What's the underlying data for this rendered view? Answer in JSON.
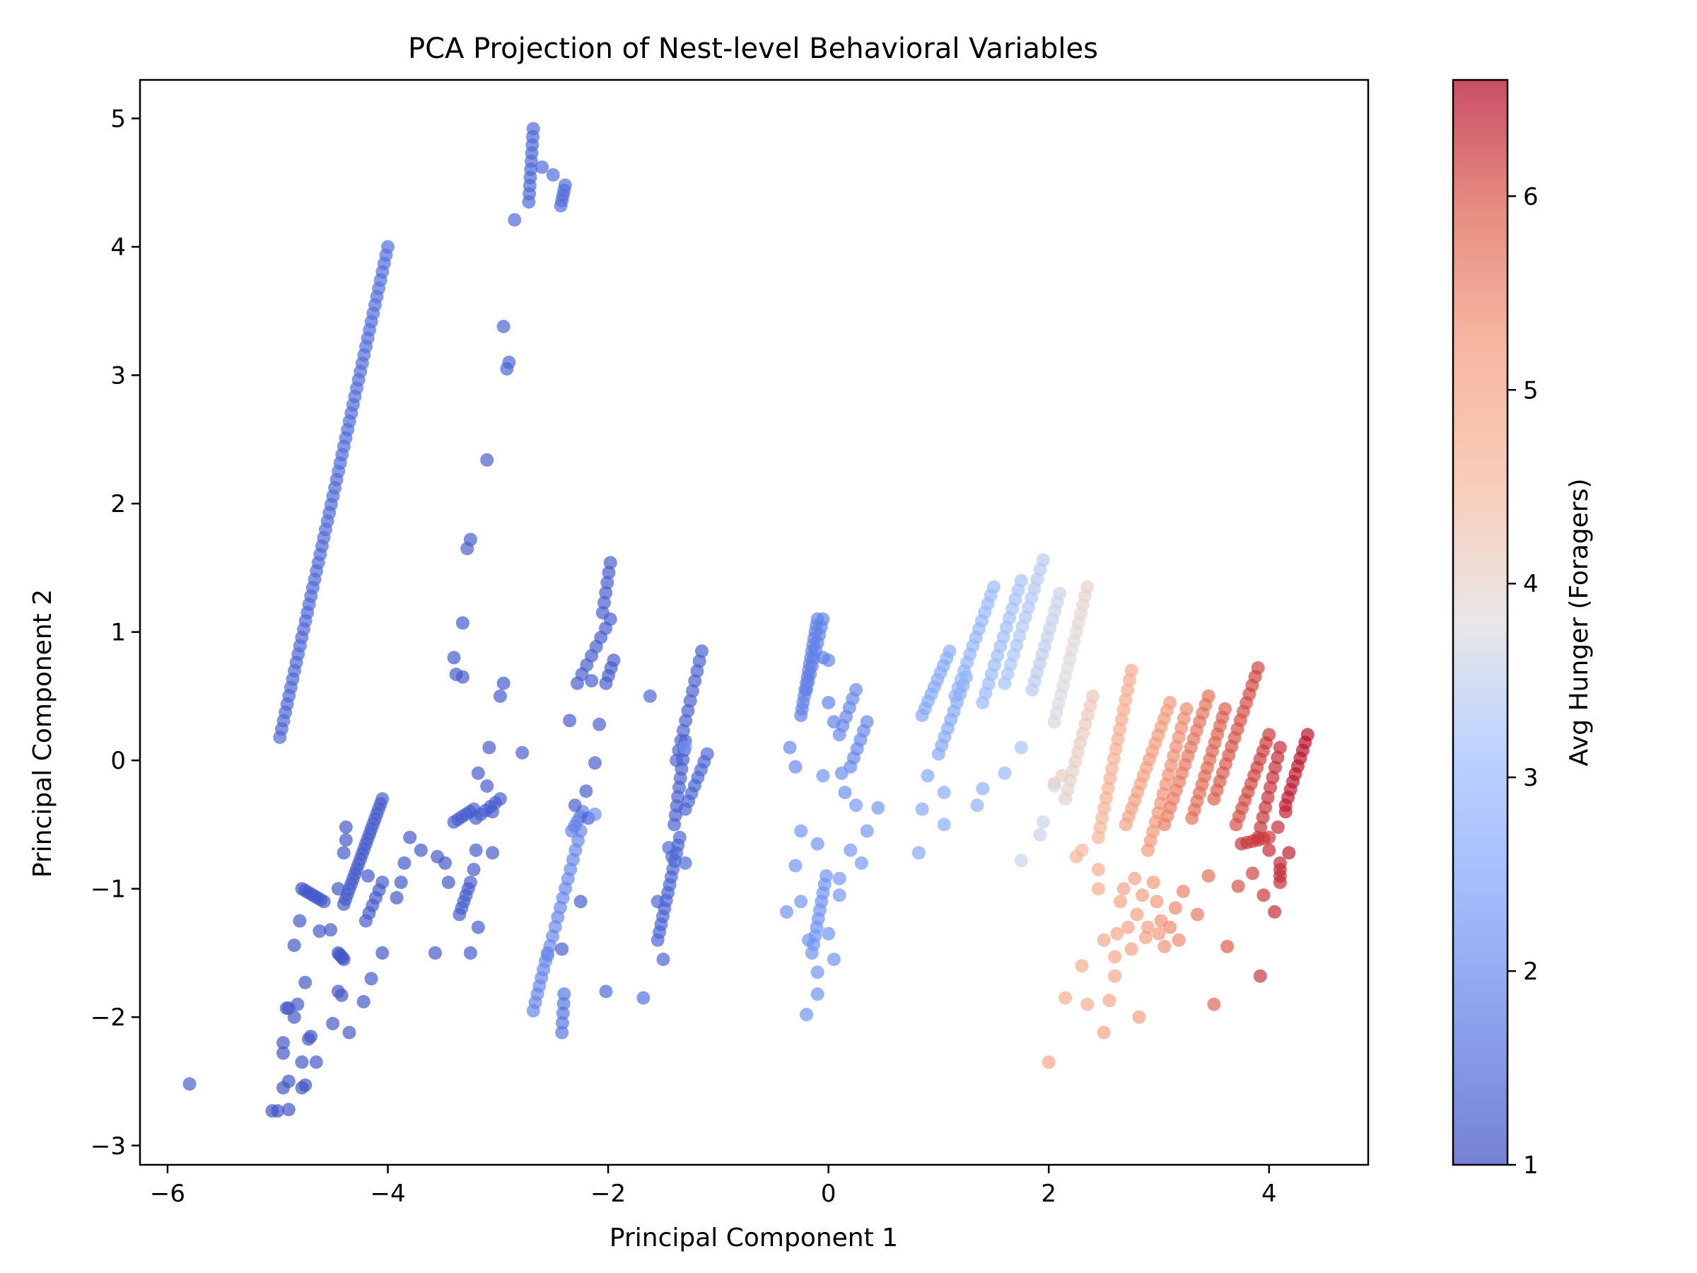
{
  "chart_data": {
    "type": "scatter",
    "title": "PCA Projection of Nest-level Behavioral Variables",
    "xlabel": "Principal Component 1",
    "ylabel": "Principal Component 2",
    "xlim": [
      -6.25,
      4.9
    ],
    "ylim": [
      -3.15,
      5.3
    ],
    "xticks": [
      -6,
      -4,
      -2,
      0,
      2,
      4
    ],
    "yticks": [
      -3,
      -2,
      -1,
      0,
      1,
      2,
      3,
      4,
      5
    ],
    "grid": false,
    "colorbar": {
      "label": "Avg Hunger (Foragers)",
      "colormap": "coolwarm",
      "range": [
        1.0,
        6.6
      ],
      "ticks": [
        1,
        2,
        3,
        4,
        5,
        6
      ],
      "low_color": "#3b4cc0",
      "mid_color": "#dddddd",
      "high_color": "#b40426"
    },
    "point_alpha": 0.7,
    "segments": [
      {
        "x0": -4.98,
        "y0": 0.18,
        "x1": -4.0,
        "y1": 4.0,
        "c0": 1.45,
        "c1": 1.6,
        "n": 60
      },
      {
        "x0": -2.72,
        "y0": 4.35,
        "x1": -2.68,
        "y1": 4.92,
        "c0": 1.5,
        "c1": 1.5,
        "n": 10
      },
      {
        "x0": -2.43,
        "y0": 4.32,
        "x1": -2.39,
        "y1": 4.48,
        "c0": 1.55,
        "c1": 1.55,
        "n": 5
      },
      {
        "x0": -4.78,
        "y0": -1.0,
        "x1": -4.58,
        "y1": -1.1,
        "c0": 1.2,
        "c1": 1.2,
        "n": 8
      },
      {
        "x0": -4.45,
        "y0": -1.5,
        "x1": -4.4,
        "y1": -1.55,
        "c0": 1.2,
        "c1": 1.2,
        "n": 5
      },
      {
        "x0": -4.4,
        "y0": -1.12,
        "x1": -4.05,
        "y1": -0.3,
        "c0": 1.25,
        "c1": 1.3,
        "n": 22
      },
      {
        "x0": -4.2,
        "y0": -1.25,
        "x1": -4.05,
        "y1": -0.95,
        "c0": 1.25,
        "c1": 1.25,
        "n": 6
      },
      {
        "x0": -3.35,
        "y0": -1.2,
        "x1": -3.25,
        "y1": -0.95,
        "c0": 1.3,
        "c1": 1.3,
        "n": 6
      },
      {
        "x0": -3.4,
        "y0": -0.48,
        "x1": -3.22,
        "y1": -0.38,
        "c0": 1.3,
        "c1": 1.3,
        "n": 6
      },
      {
        "x0": -3.2,
        "y0": -0.45,
        "x1": -2.98,
        "y1": -0.3,
        "c0": 1.3,
        "c1": 1.3,
        "n": 6
      },
      {
        "x0": -2.33,
        "y0": -0.55,
        "x1": -2.23,
        "y1": -0.4,
        "c0": 1.9,
        "c1": 1.9,
        "n": 5
      },
      {
        "x0": -2.28,
        "y0": 0.6,
        "x1": -1.98,
        "y1": 1.1,
        "c0": 1.3,
        "c1": 1.3,
        "n": 8
      },
      {
        "x0": -2.05,
        "y0": 1.15,
        "x1": -1.98,
        "y1": 1.54,
        "c0": 1.3,
        "c1": 1.3,
        "n": 6
      },
      {
        "x0": -2.02,
        "y0": 0.6,
        "x1": -1.95,
        "y1": 0.78,
        "c0": 1.3,
        "c1": 1.3,
        "n": 4
      },
      {
        "x0": -2.55,
        "y0": -1.52,
        "x1": -2.25,
        "y1": -0.55,
        "c0": 2.0,
        "c1": 2.0,
        "n": 14
      },
      {
        "x0": -2.68,
        "y0": -1.95,
        "x1": -2.55,
        "y1": -1.5,
        "c0": 2.0,
        "c1": 2.0,
        "n": 8
      },
      {
        "x0": -2.42,
        "y0": -2.12,
        "x1": -2.4,
        "y1": -1.82,
        "c0": 1.7,
        "c1": 1.7,
        "n": 5
      },
      {
        "x0": -1.55,
        "y0": -1.4,
        "x1": -1.35,
        "y1": -0.6,
        "c0": 1.4,
        "c1": 1.4,
        "n": 14
      },
      {
        "x0": -1.4,
        "y0": -0.5,
        "x1": -1.3,
        "y1": 0.15,
        "c0": 1.35,
        "c1": 1.35,
        "n": 10
      },
      {
        "x0": -1.38,
        "y0": 0.0,
        "x1": -1.15,
        "y1": 0.85,
        "c0": 1.35,
        "c1": 1.35,
        "n": 12
      },
      {
        "x0": -1.3,
        "y0": -0.38,
        "x1": -1.1,
        "y1": 0.05,
        "c0": 1.4,
        "c1": 1.4,
        "n": 8
      },
      {
        "x0": -0.25,
        "y0": 0.35,
        "x1": -0.1,
        "y1": 1.1,
        "c0": 1.9,
        "c1": 1.9,
        "n": 16
      },
      {
        "x0": -0.2,
        "y0": 0.55,
        "x1": -0.05,
        "y1": 1.1,
        "c0": 1.9,
        "c1": 1.9,
        "n": 10
      },
      {
        "x0": -0.15,
        "y0": -1.5,
        "x1": -0.02,
        "y1": -0.9,
        "c0": 2.2,
        "c1": 2.2,
        "n": 10
      },
      {
        "x0": 0.1,
        "y0": 0.2,
        "x1": 0.25,
        "y1": 0.55,
        "c0": 2.0,
        "c1": 2.0,
        "n": 6
      },
      {
        "x0": 0.2,
        "y0": -0.05,
        "x1": 0.35,
        "y1": 0.3,
        "c0": 2.0,
        "c1": 2.0,
        "n": 6
      },
      {
        "x0": 0.85,
        "y0": 0.35,
        "x1": 1.1,
        "y1": 0.85,
        "c0": 2.6,
        "c1": 2.7,
        "n": 10
      },
      {
        "x0": 1.0,
        "y0": 0.05,
        "x1": 1.25,
        "y1": 0.65,
        "c0": 2.6,
        "c1": 2.7,
        "n": 10
      },
      {
        "x0": 1.15,
        "y0": 0.5,
        "x1": 1.5,
        "y1": 1.35,
        "c0": 2.8,
        "c1": 3.0,
        "n": 14
      },
      {
        "x0": 1.4,
        "y0": 0.45,
        "x1": 1.75,
        "y1": 1.4,
        "c0": 3.0,
        "c1": 3.2,
        "n": 14
      },
      {
        "x0": 1.6,
        "y0": 0.6,
        "x1": 1.95,
        "y1": 1.56,
        "c0": 3.2,
        "c1": 3.4,
        "n": 14
      },
      {
        "x0": 1.85,
        "y0": 0.55,
        "x1": 2.1,
        "y1": 1.3,
        "c0": 3.4,
        "c1": 3.6,
        "n": 12
      },
      {
        "x0": 2.05,
        "y0": 0.3,
        "x1": 2.35,
        "y1": 1.35,
        "c0": 3.7,
        "c1": 4.0,
        "n": 16
      },
      {
        "x0": 2.15,
        "y0": -0.3,
        "x1": 2.4,
        "y1": 0.5,
        "c0": 4.0,
        "c1": 4.2,
        "n": 12
      },
      {
        "x0": 2.45,
        "y0": -0.6,
        "x1": 2.75,
        "y1": 0.7,
        "c0": 4.6,
        "c1": 4.8,
        "n": 18
      },
      {
        "x0": 2.7,
        "y0": -0.5,
        "x1": 3.1,
        "y1": 0.45,
        "c0": 5.0,
        "c1": 5.2,
        "n": 16
      },
      {
        "x0": 2.9,
        "y0": -0.7,
        "x1": 3.25,
        "y1": 0.4,
        "c0": 5.2,
        "c1": 5.4,
        "n": 16
      },
      {
        "x0": 3.05,
        "y0": -0.5,
        "x1": 3.45,
        "y1": 0.5,
        "c0": 5.5,
        "c1": 5.7,
        "n": 16
      },
      {
        "x0": 3.3,
        "y0": -0.45,
        "x1": 3.6,
        "y1": 0.4,
        "c0": 5.7,
        "c1": 5.9,
        "n": 14
      },
      {
        "x0": 3.5,
        "y0": -0.3,
        "x1": 3.9,
        "y1": 0.72,
        "c0": 5.9,
        "c1": 6.1,
        "n": 16
      },
      {
        "x0": 3.7,
        "y0": -0.5,
        "x1": 4.0,
        "y1": 0.2,
        "c0": 6.0,
        "c1": 6.2,
        "n": 12
      },
      {
        "x0": 3.9,
        "y0": -0.6,
        "x1": 4.1,
        "y1": 0.1,
        "c0": 6.2,
        "c1": 6.3,
        "n": 10
      },
      {
        "x0": 4.15,
        "y0": -0.35,
        "x1": 4.35,
        "y1": 0.2,
        "c0": 6.4,
        "c1": 6.5,
        "n": 10
      },
      {
        "x0": 3.75,
        "y0": -0.65,
        "x1": 4.0,
        "y1": -0.6,
        "c0": 6.2,
        "c1": 6.2,
        "n": 6
      },
      {
        "x0": 4.1,
        "y0": -0.95,
        "x1": 4.1,
        "y1": -0.8,
        "c0": 6.3,
        "c1": 6.3,
        "n": 4
      }
    ],
    "points": [
      [
        -5.8,
        -2.52,
        1.3
      ],
      [
        -5.05,
        -2.73,
        1.15
      ],
      [
        -5.0,
        -2.73,
        1.15
      ],
      [
        -4.95,
        -2.55,
        1.15
      ],
      [
        -4.9,
        -2.5,
        1.15
      ],
      [
        -4.95,
        -2.2,
        1.2
      ],
      [
        -4.95,
        -2.28,
        1.2
      ],
      [
        -4.92,
        -1.93,
        1.2
      ],
      [
        -4.9,
        -1.93,
        1.2
      ],
      [
        -4.82,
        -1.9,
        1.2
      ],
      [
        -4.85,
        -2.0,
        1.2
      ],
      [
        -4.9,
        -2.72,
        1.15
      ],
      [
        -4.78,
        -2.55,
        1.15
      ],
      [
        -4.75,
        -2.53,
        1.15
      ],
      [
        -4.78,
        -2.35,
        1.2
      ],
      [
        -4.72,
        -2.17,
        1.2
      ],
      [
        -4.7,
        -2.15,
        1.2
      ],
      [
        -4.65,
        -2.35,
        1.2
      ],
      [
        -4.62,
        -1.33,
        1.2
      ],
      [
        -4.75,
        -1.73,
        1.2
      ],
      [
        -4.85,
        -1.44,
        1.2
      ],
      [
        -4.8,
        -1.25,
        1.2
      ],
      [
        -4.52,
        -1.32,
        1.2
      ],
      [
        -4.5,
        -2.05,
        1.2
      ],
      [
        -4.45,
        -1.8,
        1.2
      ],
      [
        -4.42,
        -1.83,
        1.2
      ],
      [
        -4.35,
        -2.12,
        1.2
      ],
      [
        -4.45,
        -1.0,
        1.2
      ],
      [
        -4.4,
        -0.72,
        1.2
      ],
      [
        -4.38,
        -0.52,
        1.2
      ],
      [
        -4.38,
        -0.62,
        1.2
      ],
      [
        -4.18,
        -0.9,
        1.2
      ],
      [
        -4.22,
        -1.88,
        1.2
      ],
      [
        -4.15,
        -1.7,
        1.2
      ],
      [
        -4.05,
        -1.5,
        1.2
      ],
      [
        -3.92,
        -1.07,
        1.2
      ],
      [
        -3.88,
        -0.95,
        1.2
      ],
      [
        -3.85,
        -0.8,
        1.2
      ],
      [
        -3.8,
        -0.6,
        1.2
      ],
      [
        -3.7,
        -0.7,
        1.2
      ],
      [
        -3.57,
        -1.5,
        1.2
      ],
      [
        -3.55,
        -0.75,
        1.2
      ],
      [
        -3.48,
        -0.8,
        1.2
      ],
      [
        -3.45,
        -0.95,
        1.2
      ],
      [
        -3.4,
        0.8,
        1.25
      ],
      [
        -3.38,
        0.67,
        1.25
      ],
      [
        -3.32,
        0.65,
        1.25
      ],
      [
        -3.32,
        1.07,
        1.25
      ],
      [
        -3.28,
        1.65,
        1.3
      ],
      [
        -3.25,
        1.72,
        1.3
      ],
      [
        -3.25,
        -1.5,
        1.25
      ],
      [
        -3.22,
        -0.85,
        1.25
      ],
      [
        -3.2,
        -0.7,
        1.25
      ],
      [
        -3.18,
        -1.3,
        1.25
      ],
      [
        -3.18,
        -0.1,
        1.25
      ],
      [
        -3.1,
        -0.2,
        1.25
      ],
      [
        -3.08,
        0.1,
        1.25
      ],
      [
        -3.1,
        2.34,
        1.3
      ],
      [
        -3.05,
        -0.72,
        1.25
      ],
      [
        -3.05,
        -0.4,
        1.25
      ],
      [
        -2.98,
        0.5,
        1.25
      ],
      [
        -2.95,
        0.6,
        1.25
      ],
      [
        -2.95,
        3.38,
        1.4
      ],
      [
        -2.92,
        3.05,
        1.4
      ],
      [
        -2.9,
        3.1,
        1.4
      ],
      [
        -2.85,
        4.21,
        1.5
      ],
      [
        -2.78,
        0.06,
        1.3
      ],
      [
        -2.6,
        4.62,
        1.5
      ],
      [
        -2.5,
        4.56,
        1.55
      ],
      [
        -2.42,
        -1.47,
        1.3
      ],
      [
        -2.35,
        0.31,
        1.3
      ],
      [
        -2.3,
        -0.35,
        1.3
      ],
      [
        -2.25,
        -1.1,
        1.3
      ],
      [
        -2.2,
        -0.24,
        1.3
      ],
      [
        -2.18,
        -0.45,
        1.3
      ],
      [
        -2.15,
        0.62,
        1.3
      ],
      [
        -2.12,
        -0.42,
        2.1
      ],
      [
        -2.12,
        -0.02,
        1.3
      ],
      [
        -2.08,
        0.28,
        1.3
      ],
      [
        -2.02,
        -1.8,
        1.5
      ],
      [
        -1.68,
        -1.85,
        1.6
      ],
      [
        -1.62,
        0.5,
        1.4
      ],
      [
        -1.55,
        -1.1,
        1.4
      ],
      [
        -1.5,
        -1.55,
        1.4
      ],
      [
        -1.45,
        -0.68,
        1.5
      ],
      [
        -1.42,
        -0.75,
        1.5
      ],
      [
        -1.3,
        -0.8,
        1.5
      ],
      [
        -1.3,
        0.1,
        2.2
      ],
      [
        -0.35,
        0.1,
        2.0
      ],
      [
        -0.3,
        -0.05,
        2.0
      ],
      [
        -0.38,
        -1.18,
        2.2
      ],
      [
        -0.3,
        -0.82,
        2.2
      ],
      [
        -0.25,
        -0.55,
        2.2
      ],
      [
        -0.25,
        -1.1,
        2.2
      ],
      [
        -0.2,
        -1.98,
        2.2
      ],
      [
        -0.18,
        -1.4,
        2.2
      ],
      [
        -0.1,
        -1.82,
        2.2
      ],
      [
        -0.1,
        -1.65,
        2.2
      ],
      [
        -0.1,
        -0.65,
        2.2
      ],
      [
        -0.05,
        -0.12,
        2.2
      ],
      [
        0.0,
        -1.35,
        2.2
      ],
      [
        0.05,
        -1.55,
        2.2
      ],
      [
        0.1,
        -1.05,
        2.3
      ],
      [
        0.1,
        -0.92,
        2.3
      ],
      [
        0.12,
        -0.1,
        2.1
      ],
      [
        0.15,
        -0.25,
        2.1
      ],
      [
        0.2,
        -0.7,
        2.3
      ],
      [
        0.25,
        -0.35,
        2.3
      ],
      [
        0.3,
        -0.8,
        2.3
      ],
      [
        0.35,
        -0.55,
        2.3
      ],
      [
        0.45,
        -0.37,
        2.3
      ],
      [
        -0.05,
        0.8,
        1.9
      ],
      [
        0.0,
        0.45,
        1.9
      ],
      [
        0.05,
        0.3,
        1.9
      ],
      [
        0.0,
        0.78,
        1.9
      ],
      [
        0.85,
        -0.38,
        2.6
      ],
      [
        0.82,
        -0.72,
        2.6
      ],
      [
        0.9,
        -0.12,
        2.6
      ],
      [
        1.05,
        -0.5,
        2.7
      ],
      [
        1.05,
        -0.25,
        2.7
      ],
      [
        1.35,
        -0.35,
        2.8
      ],
      [
        1.4,
        -0.22,
        2.8
      ],
      [
        1.6,
        -0.1,
        3.0
      ],
      [
        1.75,
        0.1,
        3.2
      ],
      [
        1.75,
        -0.78,
        3.6
      ],
      [
        1.92,
        -0.58,
        3.6
      ],
      [
        1.95,
        -0.48,
        3.6
      ],
      [
        2.05,
        -0.2,
        3.8
      ],
      [
        2.0,
        -2.35,
        4.9
      ],
      [
        2.25,
        -0.75,
        4.6
      ],
      [
        2.3,
        -0.7,
        4.5
      ],
      [
        2.05,
        -0.18,
        4.0
      ],
      [
        2.12,
        -0.12,
        4.1
      ],
      [
        2.15,
        -1.85,
        4.8
      ],
      [
        2.3,
        -1.6,
        4.8
      ],
      [
        2.35,
        -1.9,
        4.8
      ],
      [
        2.45,
        -1.0,
        4.8
      ],
      [
        2.45,
        -0.85,
        4.8
      ],
      [
        2.5,
        -1.4,
        4.9
      ],
      [
        2.55,
        -1.87,
        4.9
      ],
      [
        2.6,
        -1.68,
        4.9
      ],
      [
        2.6,
        -1.53,
        4.9
      ],
      [
        2.5,
        -2.12,
        5.0
      ],
      [
        2.62,
        -1.35,
        4.9
      ],
      [
        2.65,
        -1.1,
        5.0
      ],
      [
        2.68,
        -1.0,
        5.0
      ],
      [
        2.72,
        -1.3,
        5.0
      ],
      [
        2.75,
        -1.47,
        5.0
      ],
      [
        2.78,
        -0.92,
        5.0
      ],
      [
        2.8,
        -1.2,
        5.1
      ],
      [
        2.82,
        -2.0,
        5.1
      ],
      [
        2.85,
        -1.05,
        5.1
      ],
      [
        2.88,
        -1.38,
        5.1
      ],
      [
        2.9,
        -1.3,
        5.1
      ],
      [
        2.95,
        -0.95,
        5.2
      ],
      [
        2.98,
        -1.1,
        5.2
      ],
      [
        3.0,
        -1.35,
        5.2
      ],
      [
        3.02,
        -1.25,
        5.3
      ],
      [
        3.05,
        -1.45,
        5.3
      ],
      [
        3.1,
        -1.3,
        5.4
      ],
      [
        3.15,
        -1.15,
        5.4
      ],
      [
        3.18,
        -1.4,
        5.4
      ],
      [
        3.22,
        -1.02,
        5.5
      ],
      [
        3.35,
        -1.2,
        5.6
      ],
      [
        3.45,
        -0.9,
        5.7
      ],
      [
        3.5,
        -1.9,
        5.8
      ],
      [
        3.62,
        -1.45,
        5.9
      ],
      [
        3.72,
        -0.98,
        6.0
      ],
      [
        3.85,
        -0.88,
        6.1
      ],
      [
        3.92,
        -1.68,
        6.2
      ],
      [
        3.95,
        -1.05,
        6.2
      ],
      [
        4.05,
        -1.18,
        6.3
      ],
      [
        4.0,
        -0.7,
        6.3
      ],
      [
        4.08,
        -0.52,
        6.3
      ],
      [
        4.15,
        -0.4,
        6.4
      ],
      [
        4.18,
        -0.72,
        6.4
      ]
    ]
  }
}
